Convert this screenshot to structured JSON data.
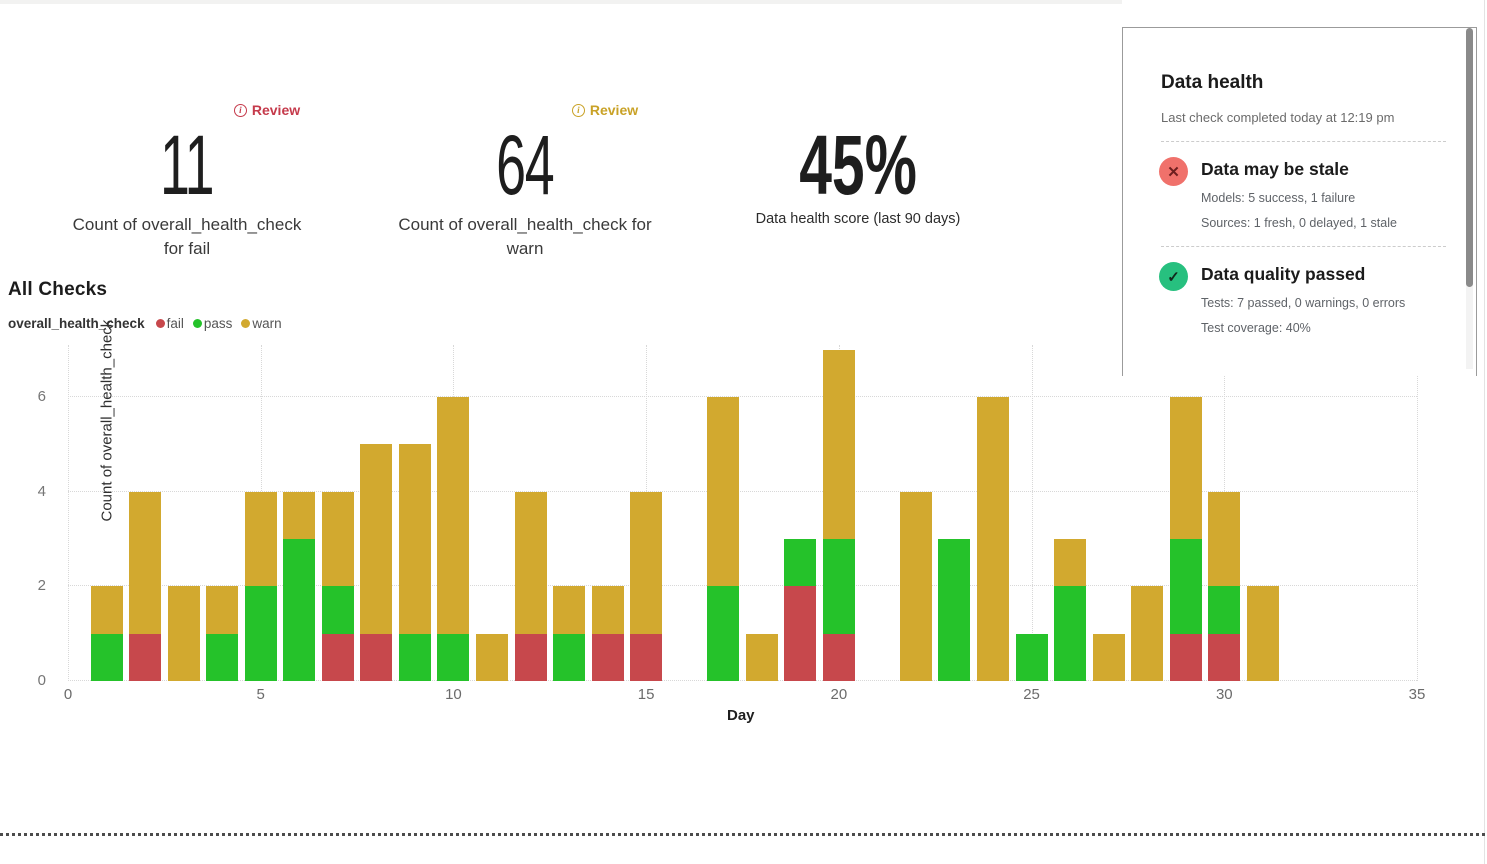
{
  "metrics": [
    {
      "value": "11",
      "label_line1": "Count of overall_health_check",
      "label_line2": "for fail",
      "review_label": "Review"
    },
    {
      "value": "64",
      "label_line1": "Count of overall_health_check for",
      "label_line2": "warn",
      "review_label": "Review"
    },
    {
      "value": "45%",
      "label_line1": "Data health score (last 90 days)",
      "label_line2": ""
    }
  ],
  "chart_data": {
    "type": "bar",
    "stacked": true,
    "title": "All Checks",
    "series_field_label": "overall_health_check",
    "xlabel": "Day",
    "ylabel": "Count of overall_health_check",
    "xlim": [
      0,
      35
    ],
    "ylim": [
      0,
      7.1
    ],
    "x_ticks": [
      0,
      5,
      10,
      15,
      20,
      25,
      30,
      35
    ],
    "y_ticks": [
      0,
      2,
      4,
      6
    ],
    "grid": "dotted",
    "legend_position": "top-left",
    "legend": [
      {
        "name": "fail",
        "color": "#c7484c"
      },
      {
        "name": "pass",
        "color": "#25c22a"
      },
      {
        "name": "warn",
        "color": "#d2a92f"
      }
    ],
    "stack_order": [
      "fail",
      "pass",
      "warn"
    ],
    "bars": [
      {
        "day": 1,
        "fail": 0,
        "pass": 1,
        "warn": 1
      },
      {
        "day": 2,
        "fail": 1,
        "pass": 0,
        "warn": 3
      },
      {
        "day": 3,
        "fail": 0,
        "pass": 0,
        "warn": 2
      },
      {
        "day": 4,
        "fail": 0,
        "pass": 1,
        "warn": 1
      },
      {
        "day": 5,
        "fail": 0,
        "pass": 2,
        "warn": 2
      },
      {
        "day": 6,
        "fail": 0,
        "pass": 3,
        "warn": 1
      },
      {
        "day": 7,
        "fail": 1,
        "pass": 1,
        "warn": 2
      },
      {
        "day": 8,
        "fail": 1,
        "pass": 0,
        "warn": 4
      },
      {
        "day": 9,
        "fail": 0,
        "pass": 1,
        "warn": 4
      },
      {
        "day": 10,
        "fail": 0,
        "pass": 1,
        "warn": 5
      },
      {
        "day": 11,
        "fail": 0,
        "pass": 0,
        "warn": 1
      },
      {
        "day": 12,
        "fail": 1,
        "pass": 0,
        "warn": 3
      },
      {
        "day": 13,
        "fail": 0,
        "pass": 1,
        "warn": 1
      },
      {
        "day": 14,
        "fail": 1,
        "pass": 0,
        "warn": 1
      },
      {
        "day": 15,
        "fail": 1,
        "pass": 0,
        "warn": 3
      },
      {
        "day": 17,
        "fail": 0,
        "pass": 2,
        "warn": 4
      },
      {
        "day": 18,
        "fail": 0,
        "pass": 0,
        "warn": 1
      },
      {
        "day": 19,
        "fail": 2,
        "pass": 1,
        "warn": 0
      },
      {
        "day": 20,
        "fail": 1,
        "pass": 2,
        "warn": 4
      },
      {
        "day": 22,
        "fail": 0,
        "pass": 0,
        "warn": 4
      },
      {
        "day": 23,
        "fail": 0,
        "pass": 3,
        "warn": 0
      },
      {
        "day": 24,
        "fail": 0,
        "pass": 0,
        "warn": 6
      },
      {
        "day": 25,
        "fail": 0,
        "pass": 1,
        "warn": 0
      },
      {
        "day": 26,
        "fail": 0,
        "pass": 2,
        "warn": 1
      },
      {
        "day": 27,
        "fail": 0,
        "pass": 0,
        "warn": 1
      },
      {
        "day": 28,
        "fail": 0,
        "pass": 0,
        "warn": 2
      },
      {
        "day": 29,
        "fail": 1,
        "pass": 2,
        "warn": 3
      },
      {
        "day": 30,
        "fail": 1,
        "pass": 1,
        "warn": 2
      },
      {
        "day": 31,
        "fail": 0,
        "pass": 0,
        "warn": 2
      }
    ]
  },
  "panel": {
    "title": "Data health",
    "subtitle": "Last check completed today at 12:19 pm",
    "sections": [
      {
        "status": "fail",
        "icon": "x-circle",
        "title": "Data may be stale",
        "line1": "Models: 5 success, 1 failure",
        "line2": "Sources: 1 fresh, 0 delayed, 1 stale"
      },
      {
        "status": "pass",
        "icon": "check-circle",
        "title": "Data quality passed",
        "line1": "Tests: 7 passed, 0 warnings, 0 errors",
        "line2": "Test coverage: 40%"
      }
    ]
  }
}
